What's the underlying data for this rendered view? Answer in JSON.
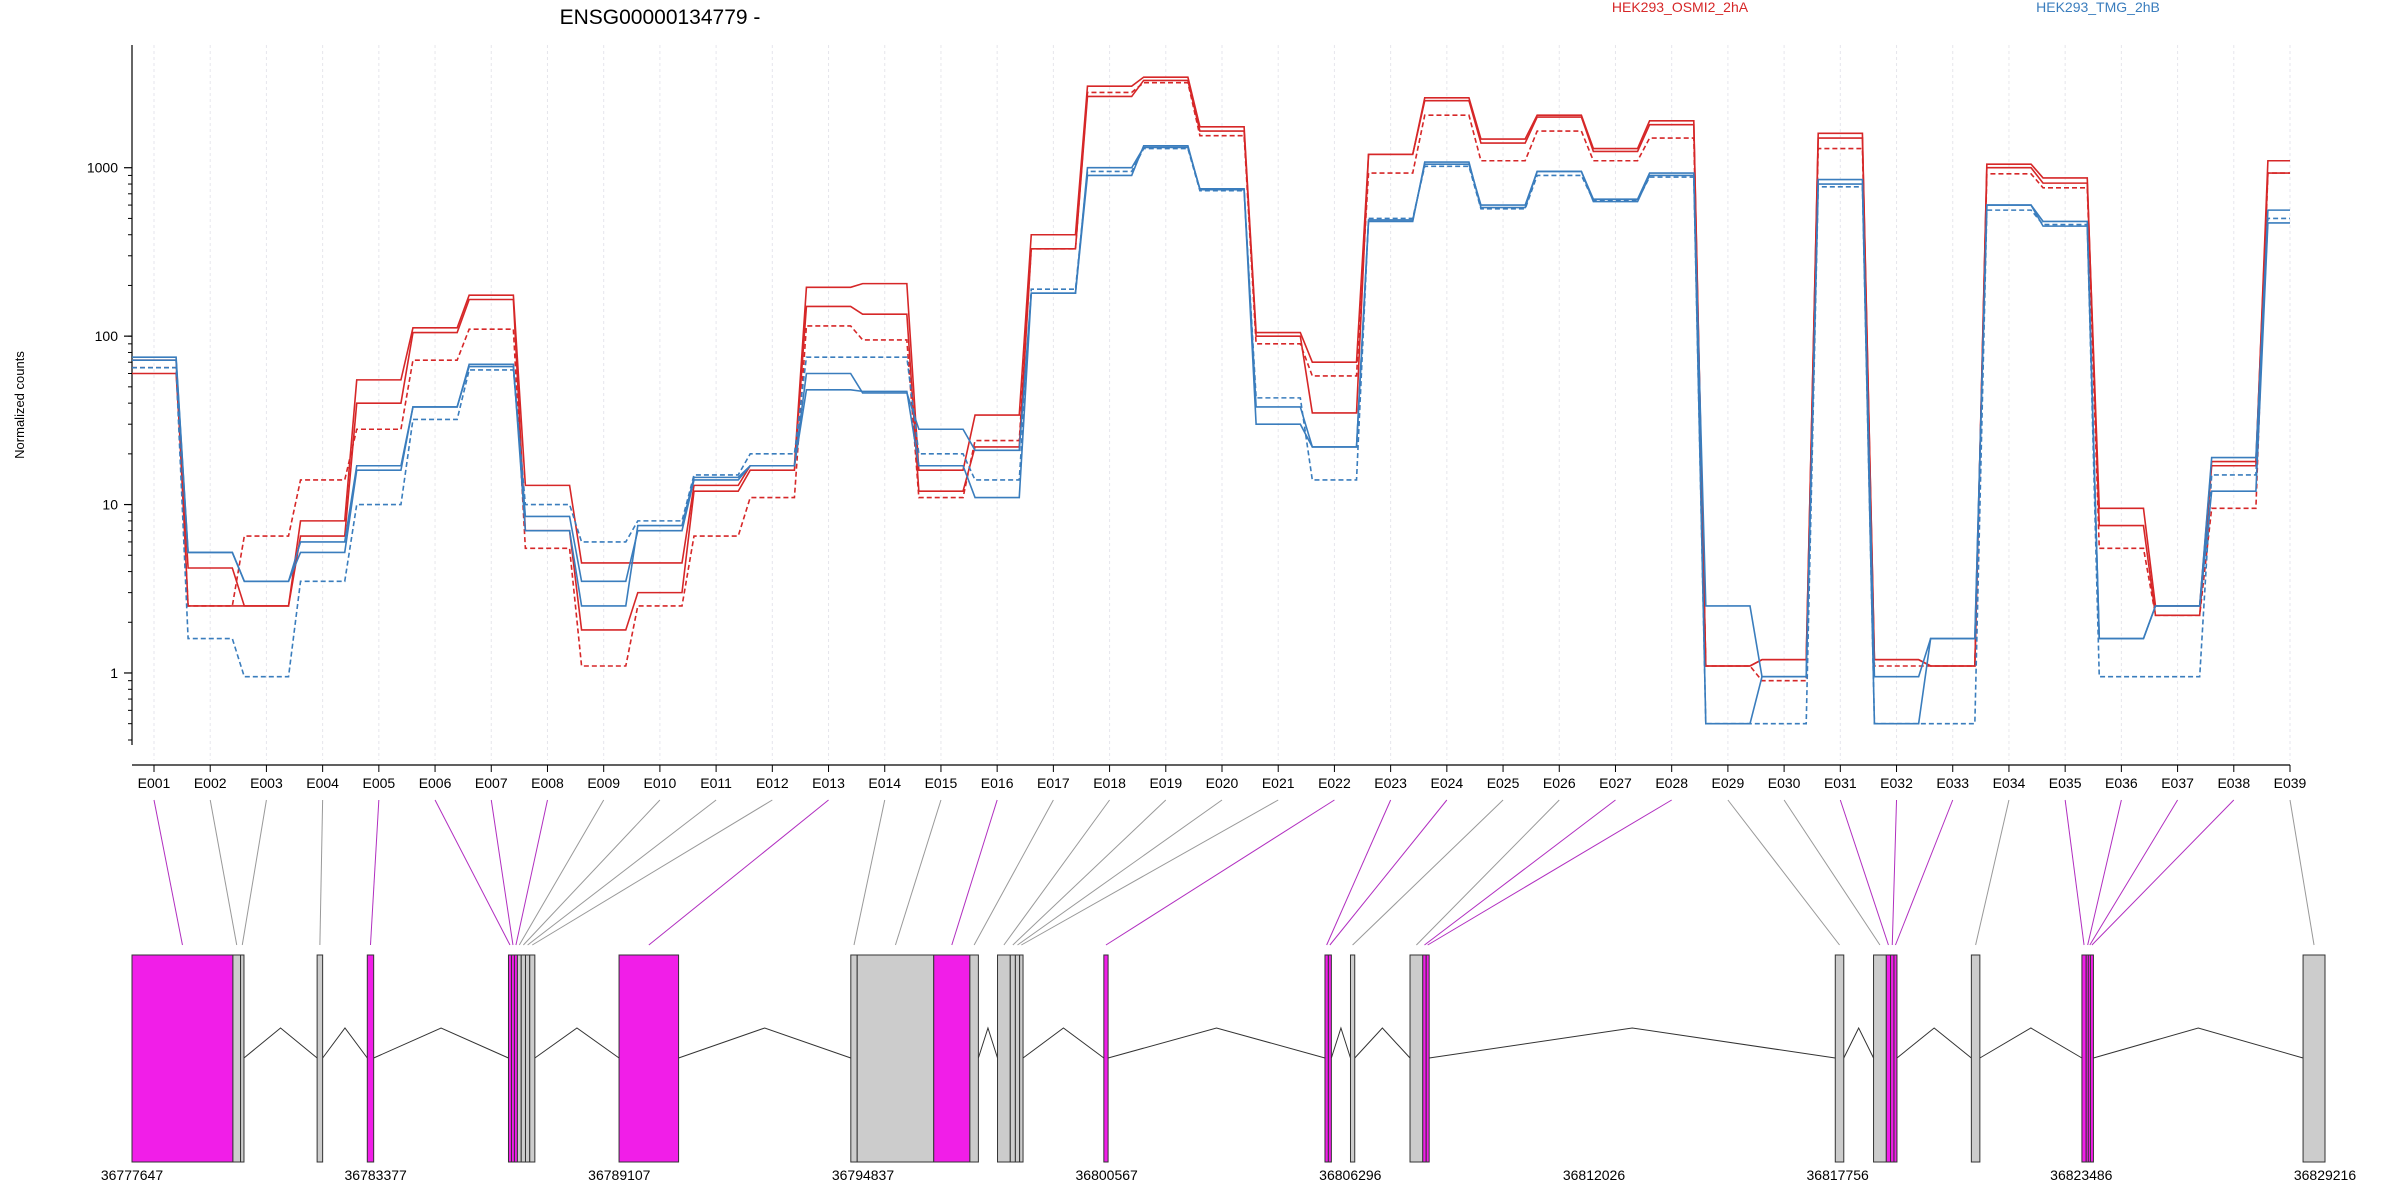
{
  "chart_data": {
    "type": "line",
    "title": "ENSG00000134779 -",
    "ylabel": "Normalized counts",
    "yscale": "log",
    "ylim": [
      0.4,
      5000
    ],
    "yticks": [
      1,
      10,
      100,
      1000
    ],
    "ytick_labels": [
      "1",
      "10",
      "100",
      "1000"
    ],
    "grid": "vertical",
    "legend": [
      {
        "name": "HEK293_OSMI2_2hA",
        "color": "#d62728"
      },
      {
        "name": "HEK293_TMG_2hB",
        "color": "#3a7dbd"
      }
    ],
    "categories": [
      "E001",
      "E002",
      "E003",
      "E004",
      "E005",
      "E006",
      "E007",
      "E008",
      "E009",
      "E010",
      "E011",
      "E012",
      "E013",
      "E014",
      "E015",
      "E016",
      "E017",
      "E018",
      "E019",
      "E020",
      "E021",
      "E022",
      "E023",
      "E024",
      "E025",
      "E026",
      "E027",
      "E028",
      "E029",
      "E030",
      "E031",
      "E032",
      "E033",
      "E034",
      "E035",
      "E036",
      "E037",
      "E038",
      "E039"
    ],
    "series": [
      {
        "group": "HEK293_OSMI2_2hA",
        "color": "#d62728",
        "dashed": false,
        "values": [
          72,
          2.5,
          2.5,
          6.5,
          40,
          105,
          165,
          7,
          1.8,
          3,
          12,
          16,
          150,
          135,
          12,
          22,
          330,
          2650,
          3300,
          1650,
          100,
          35,
          1200,
          2500,
          1400,
          2000,
          1250,
          1800,
          1.1,
          1.2,
          1600,
          1.2,
          1.1,
          1050,
          870,
          7.5,
          2.2,
          17,
          1100
        ]
      },
      {
        "group": "HEK293_OSMI2_2hA",
        "color": "#d62728",
        "dashed": false,
        "values": [
          60,
          4.2,
          2.5,
          8,
          55,
          112,
          175,
          13,
          4.5,
          4.5,
          13,
          17,
          195,
          205,
          16,
          34,
          400,
          3050,
          3450,
          1750,
          105,
          70,
          1200,
          2600,
          1480,
          2050,
          1300,
          1900,
          1.1,
          1.2,
          1500,
          1.2,
          1.1,
          1000,
          810,
          9.5,
          2.5,
          18,
          930
        ]
      },
      {
        "group": "HEK293_OSMI2_2hA",
        "color": "#d62728",
        "dashed": true,
        "values": [
          65,
          2.5,
          6.5,
          14,
          28,
          72,
          110,
          5.5,
          1.1,
          2.5,
          6.5,
          11,
          115,
          95,
          11,
          24,
          330,
          2800,
          3200,
          1550,
          90,
          58,
          930,
          2050,
          1100,
          1650,
          1100,
          1500,
          1.1,
          0.9,
          1300,
          1.1,
          1.1,
          920,
          760,
          5.5,
          2.2,
          9.5,
          930
        ]
      },
      {
        "group": "HEK293_TMG_2hB",
        "color": "#3a7dbd",
        "dashed": false,
        "values": [
          72,
          5.2,
          3.5,
          5.2,
          16,
          38,
          66,
          8.5,
          3.5,
          7,
          14,
          17,
          60,
          46,
          28,
          21,
          180,
          1000,
          1320,
          750,
          38,
          22,
          490,
          1050,
          600,
          950,
          650,
          930,
          0.5,
          0.95,
          850,
          0.95,
          1.6,
          600,
          480,
          1.6,
          2.5,
          19,
          560
        ]
      },
      {
        "group": "HEK293_TMG_2hB",
        "color": "#3a7dbd",
        "dashed": true,
        "values": [
          65,
          1.6,
          0.95,
          3.5,
          10,
          32,
          63,
          10,
          6,
          8,
          15,
          20,
          75,
          75,
          20,
          14,
          190,
          950,
          1300,
          730,
          43,
          14,
          500,
          1020,
          570,
          900,
          640,
          880,
          0.5,
          0.5,
          770,
          0.5,
          0.5,
          560,
          460,
          0.95,
          0.95,
          15,
          500
        ]
      },
      {
        "group": "HEK293_TMG_2hB",
        "color": "#3a7dbd",
        "dashed": false,
        "values": [
          75,
          5.2,
          3.5,
          6,
          17,
          38,
          68,
          7,
          2.5,
          7.5,
          14.5,
          17,
          48,
          47,
          17,
          11,
          180,
          900,
          1350,
          740,
          30,
          22,
          480,
          1080,
          580,
          950,
          630,
          900,
          2.5,
          0.95,
          800,
          0.5,
          1.6,
          600,
          450,
          1.6,
          2.5,
          12,
          470
        ]
      }
    ],
    "genomic_axis": {
      "tick_labels": [
        "36777647",
        "36783377",
        "36789107",
        "36794837",
        "36800567",
        "36806296",
        "36812026",
        "36817756",
        "36823486",
        "36829216"
      ],
      "range": [
        36777647,
        36829216
      ]
    },
    "exon_mapping": [
      {
        "id": "E001",
        "start": 36777647,
        "end": 36780020,
        "highlight": true
      },
      {
        "id": "E002",
        "start": 36780020,
        "end": 36780200,
        "highlight": false
      },
      {
        "id": "E003",
        "start": 36780200,
        "end": 36780280,
        "highlight": false
      },
      {
        "id": "E004",
        "start": 36782000,
        "end": 36782130,
        "highlight": false
      },
      {
        "id": "E005",
        "start": 36783180,
        "end": 36783330,
        "highlight": true
      },
      {
        "id": "E006",
        "start": 36786500,
        "end": 36786570,
        "highlight": true
      },
      {
        "id": "E007",
        "start": 36786570,
        "end": 36786640,
        "highlight": true
      },
      {
        "id": "E008",
        "start": 36786640,
        "end": 36786710,
        "highlight": true
      },
      {
        "id": "E009",
        "start": 36786710,
        "end": 36786800,
        "highlight": false
      },
      {
        "id": "E010",
        "start": 36786800,
        "end": 36786900,
        "highlight": false
      },
      {
        "id": "E011",
        "start": 36786900,
        "end": 36787000,
        "highlight": false
      },
      {
        "id": "E012",
        "start": 36787000,
        "end": 36787120,
        "highlight": false
      },
      {
        "id": "E013",
        "start": 36789100,
        "end": 36790500,
        "highlight": true
      },
      {
        "id": "E014",
        "start": 36794550,
        "end": 36794700,
        "highlight": false
      },
      {
        "id": "E015",
        "start": 36794700,
        "end": 36796500,
        "highlight": false
      },
      {
        "id": "E016",
        "start": 36796500,
        "end": 36797350,
        "highlight": true
      },
      {
        "id": "E017",
        "start": 36797350,
        "end": 36797550,
        "highlight": false
      },
      {
        "id": "E018",
        "start": 36798000,
        "end": 36798300,
        "highlight": false
      },
      {
        "id": "E019",
        "start": 36798300,
        "end": 36798420,
        "highlight": false
      },
      {
        "id": "E020",
        "start": 36798420,
        "end": 36798520,
        "highlight": false
      },
      {
        "id": "E021",
        "start": 36798520,
        "end": 36798600,
        "highlight": false
      },
      {
        "id": "E022",
        "start": 36800500,
        "end": 36800600,
        "highlight": true
      },
      {
        "id": "E023",
        "start": 36805700,
        "end": 36805780,
        "highlight": true
      },
      {
        "id": "E024",
        "start": 36805780,
        "end": 36805850,
        "highlight": true
      },
      {
        "id": "E025",
        "start": 36806300,
        "end": 36806400,
        "highlight": false
      },
      {
        "id": "E026",
        "start": 36807700,
        "end": 36808000,
        "highlight": false
      },
      {
        "id": "E027",
        "start": 36808000,
        "end": 36808080,
        "highlight": true
      },
      {
        "id": "E028",
        "start": 36808080,
        "end": 36808150,
        "highlight": true
      },
      {
        "id": "E029",
        "start": 36817700,
        "end": 36817900,
        "highlight": false
      },
      {
        "id": "E030",
        "start": 36818600,
        "end": 36818900,
        "highlight": false
      },
      {
        "id": "E031",
        "start": 36818900,
        "end": 36819000,
        "highlight": true
      },
      {
        "id": "E032",
        "start": 36819000,
        "end": 36819080,
        "highlight": true
      },
      {
        "id": "E033",
        "start": 36819080,
        "end": 36819150,
        "highlight": true
      },
      {
        "id": "E034",
        "start": 36820900,
        "end": 36821100,
        "highlight": false
      },
      {
        "id": "E035",
        "start": 36823500,
        "end": 36823600,
        "highlight": true
      },
      {
        "id": "E036",
        "start": 36823600,
        "end": 36823650,
        "highlight": true
      },
      {
        "id": "E037",
        "start": 36823650,
        "end": 36823700,
        "highlight": true
      },
      {
        "id": "E038",
        "start": 36823700,
        "end": 36823760,
        "highlight": true
      },
      {
        "id": "E039",
        "start": 36828700,
        "end": 36829216,
        "highlight": false
      }
    ]
  }
}
